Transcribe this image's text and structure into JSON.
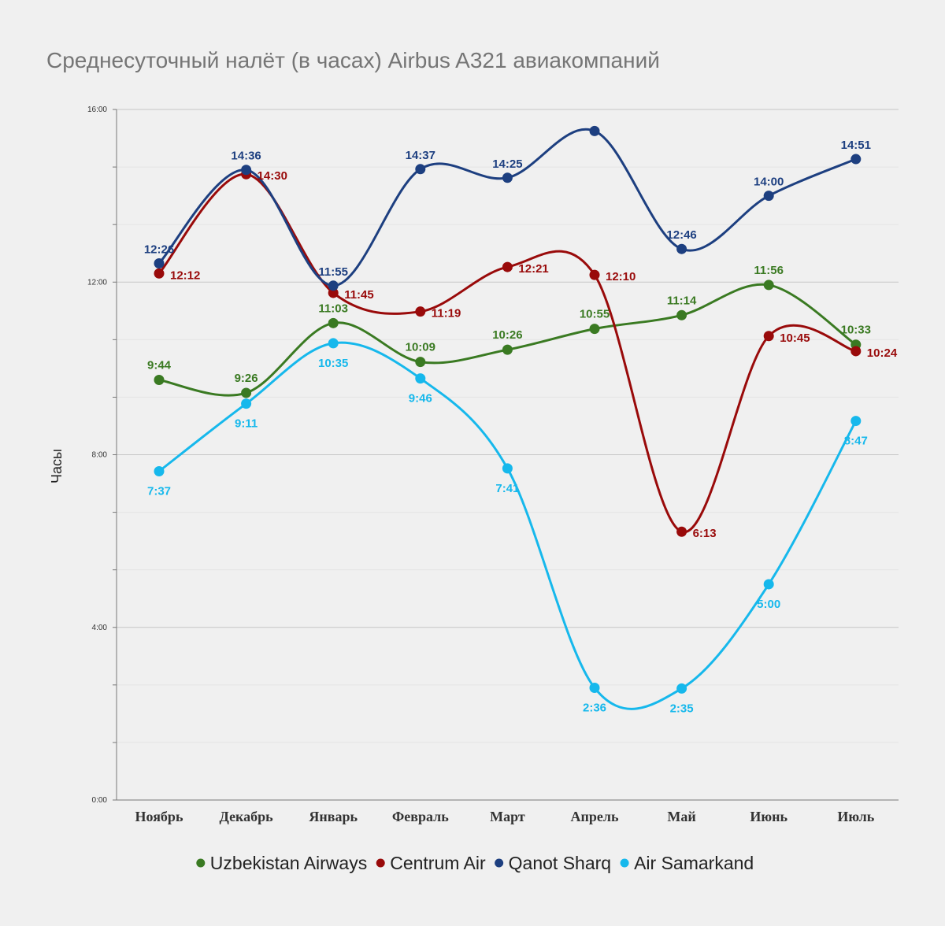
{
  "chart_data": {
    "type": "line",
    "title": "Среднесуточный налёт (в часах) Airbus A321 авиакомпаний",
    "xlabel": "",
    "ylabel": "Часы",
    "categories": [
      "Ноябрь",
      "Декабрь",
      "Январь",
      "Февраль",
      "Март",
      "Апрель",
      "Май",
      "Июнь",
      "Июль"
    ],
    "y_ticks": [
      "0:00",
      "4:00",
      "8:00",
      "12:00",
      "16:00"
    ],
    "ylim_hours": [
      0,
      16
    ],
    "grid": true,
    "legend_position": "bottom",
    "series": [
      {
        "name": "Uzbekistan Airways",
        "color": "#3a7a22",
        "values": [
          9.733,
          9.433,
          11.05,
          10.15,
          10.433,
          10.917,
          11.233,
          11.933,
          10.55
        ],
        "labels": [
          "9:44",
          "9:26",
          "11:03",
          "10:09",
          "10:26",
          "10:55",
          "11:14",
          "11:56",
          "10:33"
        ]
      },
      {
        "name": "Centrum Air",
        "color": "#990a0a",
        "values": [
          12.2,
          14.5,
          11.75,
          11.317,
          12.35,
          12.167,
          6.217,
          10.75,
          10.4
        ],
        "labels": [
          "12:12",
          "14:30",
          "11:45",
          "11:19",
          "12:21",
          "12:10",
          "6:13",
          "10:45",
          "10:24"
        ]
      },
      {
        "name": "Qanot Sharq",
        "color": "#1d3f80",
        "values": [
          12.433,
          14.6,
          11.917,
          14.617,
          14.417,
          15.5,
          12.767,
          14.0,
          14.85
        ],
        "labels": [
          "12:26",
          "14:36",
          "11:55",
          "14:37",
          "14:25",
          "",
          "12:46",
          "14:00",
          "14:51"
        ]
      },
      {
        "name": "Air Samarkand",
        "color": "#16b8ec",
        "values": [
          7.617,
          9.183,
          10.583,
          9.767,
          7.683,
          2.6,
          2.583,
          5.0,
          8.783
        ],
        "labels": [
          "7:37",
          "9:11",
          "10:35",
          "9:46",
          "7:41",
          "2:36",
          "2:35",
          "5:00",
          "8:47"
        ]
      }
    ]
  }
}
